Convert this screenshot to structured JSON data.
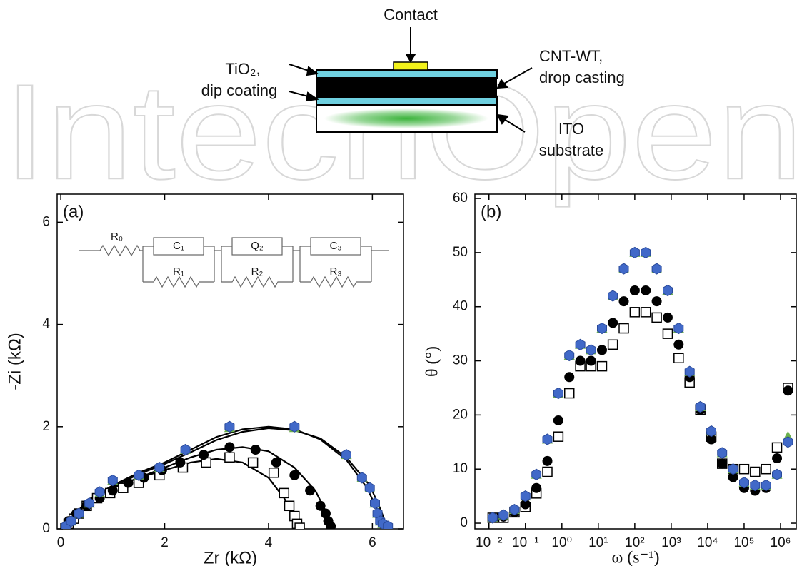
{
  "diagram": {
    "watermark": "IntechOpen",
    "contact": "Contact",
    "tio2_line1": "TiO₂,",
    "tio2_line2": "dip coating",
    "cnt_line1": "CNT-WT,",
    "cnt_line2": "drop casting",
    "ito_line1": "ITO",
    "ito_line2": "substrate"
  },
  "chart_data": [
    {
      "type": "scatter",
      "panel_label": "(a)",
      "xlabel": "Zr (kΩ)",
      "ylabel": "-Zi (kΩ)",
      "xlim": [
        -0.07,
        6.6
      ],
      "ylim": [
        0,
        6.55
      ],
      "xticks": [
        0,
        2,
        4,
        6
      ],
      "yticks": [
        0,
        2,
        4,
        6
      ],
      "circuit_labels": [
        "R₀",
        "C₁",
        "R₁",
        "Q₂",
        "R₂",
        "C₃",
        "R₃"
      ],
      "series": [
        {
          "color": "#000000",
          "marker": "open-square",
          "x": [
            0.15,
            0.25,
            0.35,
            0.5,
            0.7,
            0.95,
            1.2,
            1.5,
            1.9,
            2.35,
            2.8,
            3.25,
            3.7,
            4.1,
            4.3,
            4.4,
            4.5,
            4.55,
            4.6
          ],
          "values": [
            0.1,
            0.2,
            0.3,
            0.45,
            0.6,
            0.7,
            0.8,
            0.9,
            1.05,
            1.2,
            1.3,
            1.4,
            1.3,
            1.1,
            0.7,
            0.45,
            0.25,
            0.1,
            0.02
          ]
        },
        {
          "color": "#000000",
          "marker": "circle",
          "x": [
            0.15,
            0.3,
            0.5,
            0.75,
            1.0,
            1.3,
            1.6,
            1.95,
            2.3,
            2.75,
            3.25,
            3.75,
            4.15,
            4.5,
            4.8,
            5.0,
            5.1,
            5.15,
            5.2
          ],
          "values": [
            0.15,
            0.3,
            0.45,
            0.6,
            0.75,
            0.9,
            1.0,
            1.15,
            1.3,
            1.45,
            1.6,
            1.55,
            1.3,
            1.05,
            0.75,
            0.45,
            0.3,
            0.15,
            0.05
          ]
        },
        {
          "color": "#6ab04c",
          "marker": "triangle",
          "x": [
            0.1,
            0.2,
            0.35,
            0.55,
            0.75,
            1.0,
            1.5,
            1.9,
            2.4,
            3.25,
            4.5,
            5.5,
            5.8,
            5.95,
            6.05,
            6.1,
            6.15,
            6.2,
            6.25
          ],
          "values": [
            0.05,
            0.15,
            0.3,
            0.5,
            0.7,
            0.95,
            1.05,
            1.2,
            1.55,
            1.98,
            1.98,
            1.45,
            1.0,
            0.8,
            0.5,
            0.3,
            0.15,
            0.1,
            0.05
          ]
        },
        {
          "color": "#4169c8",
          "marker": "hexagon",
          "x": [
            0.1,
            0.2,
            0.35,
            0.55,
            0.75,
            1.0,
            1.5,
            1.9,
            2.4,
            3.25,
            4.5,
            5.5,
            5.8,
            5.95,
            6.05,
            6.1,
            6.15,
            6.2,
            6.3
          ],
          "values": [
            0.05,
            0.15,
            0.3,
            0.5,
            0.72,
            0.95,
            1.05,
            1.2,
            1.55,
            2.0,
            2.0,
            1.45,
            1.0,
            0.8,
            0.5,
            0.3,
            0.15,
            0.1,
            0.05
          ]
        }
      ],
      "fits": [
        {
          "color": "#000000",
          "x": [
            0.05,
            0.5,
            1,
            1.5,
            2,
            2.5,
            3,
            3.5,
            4,
            4.3,
            4.5,
            4.6
          ],
          "values": [
            0,
            0.55,
            0.8,
            1.0,
            1.15,
            1.3,
            1.37,
            1.3,
            1.0,
            0.6,
            0.25,
            0
          ]
        },
        {
          "color": "#000000",
          "x": [
            0.05,
            0.5,
            1,
            1.5,
            2,
            2.5,
            3,
            3.5,
            4,
            4.5,
            4.9,
            5.1,
            5.2
          ],
          "values": [
            0,
            0.5,
            0.8,
            1.0,
            1.2,
            1.4,
            1.55,
            1.6,
            1.52,
            1.2,
            0.75,
            0.35,
            0
          ]
        },
        {
          "color": "#000000",
          "x": [
            0.05,
            0.5,
            1,
            1.5,
            2,
            2.5,
            3,
            3.5,
            4,
            4.5,
            5,
            5.5,
            5.9,
            6.1,
            6.2
          ],
          "values": [
            0,
            0.55,
            0.85,
            1.1,
            1.3,
            1.55,
            1.8,
            1.95,
            2.0,
            1.95,
            1.75,
            1.35,
            0.8,
            0.35,
            0
          ]
        },
        {
          "color": "#000000",
          "x": [
            0.05,
            0.5,
            1,
            1.5,
            2,
            2.5,
            3,
            3.5,
            4,
            4.5,
            5,
            5.5,
            5.95,
            6.15,
            6.3
          ],
          "values": [
            0,
            0.52,
            0.82,
            1.07,
            1.27,
            1.5,
            1.74,
            1.9,
            1.97,
            1.93,
            1.77,
            1.4,
            0.85,
            0.4,
            0
          ]
        }
      ]
    },
    {
      "type": "scatter",
      "panel_label": "(b)",
      "xlabel": "ω (s⁻¹)",
      "ylabel": "θ (°)",
      "xscale": "log",
      "xlim": [
        0.0041,
        2700000
      ],
      "ylim": [
        -1.05,
        60.8
      ],
      "xticks": [
        {
          "value": 0.01,
          "label": "10⁻²"
        },
        {
          "value": 0.1,
          "label": "10⁻¹"
        },
        {
          "value": 1,
          "label": "10⁰"
        },
        {
          "value": 10,
          "label": "10¹"
        },
        {
          "value": 100,
          "label": "10²"
        },
        {
          "value": 1000,
          "label": "10³"
        },
        {
          "value": 10000,
          "label": "10⁴"
        },
        {
          "value": 100000,
          "label": "10⁵"
        },
        {
          "value": 1000000,
          "label": "10⁶"
        }
      ],
      "yticks": [
        0,
        10,
        20,
        30,
        40,
        50,
        60
      ],
      "series": [
        {
          "color": "#000000",
          "marker": "open-square",
          "x": [
            0.0126,
            0.025,
            0.05,
            0.1,
            0.2,
            0.4,
            0.8,
            1.6,
            3.2,
            6.3,
            12.6,
            25,
            50,
            100,
            200,
            400,
            800,
            1600,
            3200,
            6300,
            12600,
            25000,
            50000,
            100000,
            200000,
            400000,
            800000,
            1600000
          ],
          "values": [
            1,
            1,
            2,
            3,
            5.5,
            9.5,
            16,
            24,
            29,
            29,
            29,
            33,
            36,
            39,
            39,
            38,
            35,
            30.5,
            26,
            21,
            16,
            11,
            10,
            10,
            9.5,
            10,
            14,
            25
          ]
        },
        {
          "color": "#000000",
          "marker": "circle",
          "x": [
            0.0126,
            0.025,
            0.05,
            0.1,
            0.2,
            0.4,
            0.8,
            1.6,
            3.2,
            6.3,
            12.6,
            25,
            50,
            100,
            200,
            400,
            800,
            1600,
            3200,
            6300,
            12600,
            25000,
            50000,
            100000,
            200000,
            400000,
            800000,
            1600000
          ],
          "values": [
            1,
            1.2,
            2,
            3.5,
            6.5,
            11.5,
            19,
            27,
            30,
            30,
            32,
            37,
            41,
            43,
            43,
            41,
            38,
            33,
            27,
            21,
            15.5,
            11,
            8.5,
            6.5,
            6,
            6.5,
            12,
            24.5
          ]
        },
        {
          "color": "#6ab04c",
          "marker": "triangle",
          "x": [
            0.0126,
            0.025,
            0.05,
            0.1,
            0.2,
            0.4,
            0.8,
            1.6,
            3.2,
            6.3,
            12.6,
            25,
            50,
            100,
            200,
            400,
            800,
            1600,
            3200,
            6300,
            12600,
            25000,
            50000,
            100000,
            200000,
            400000,
            800000,
            1600000
          ],
          "values": [
            1,
            1.5,
            2.5,
            5,
            9,
            15.5,
            24,
            31,
            33,
            32,
            36,
            42,
            47,
            50,
            50,
            47,
            43,
            36,
            28,
            21.5,
            17,
            13,
            10,
            7.5,
            7,
            7,
            9,
            16
          ]
        },
        {
          "color": "#4169c8",
          "marker": "hexagon",
          "x": [
            0.0126,
            0.025,
            0.05,
            0.1,
            0.2,
            0.4,
            0.8,
            1.6,
            3.2,
            6.3,
            12.6,
            25,
            50,
            100,
            200,
            400,
            800,
            1600,
            3200,
            6300,
            12600,
            25000,
            50000,
            100000,
            200000,
            400000,
            800000,
            1600000
          ],
          "values": [
            1,
            1.5,
            2.5,
            5,
            9,
            15.5,
            24,
            31,
            33,
            32,
            36,
            42,
            47,
            50,
            50,
            47,
            43,
            36,
            28,
            21.5,
            17,
            13,
            10,
            7.5,
            7,
            7,
            9,
            15
          ]
        }
      ]
    }
  ]
}
